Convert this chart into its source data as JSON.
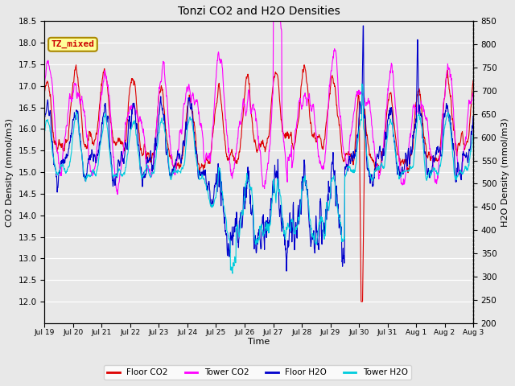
{
  "title": "Tonzi CO2 and H2O Densities",
  "xlabel": "Time",
  "ylabel_left": "CO2 Density (mmol/m3)",
  "ylabel_right": "H2O Density (mmol/m3)",
  "annotation": "TZ_mixed",
  "annotation_color": "#cc0000",
  "annotation_bg": "#ffff99",
  "annotation_border": "#aa8800",
  "ylim_left": [
    11.5,
    18.5
  ],
  "ylim_right": [
    200,
    850
  ],
  "yticks_left": [
    12.0,
    12.5,
    13.0,
    13.5,
    14.0,
    14.5,
    15.0,
    15.5,
    16.0,
    16.5,
    17.0,
    17.5,
    18.0,
    18.5
  ],
  "yticks_right": [
    200,
    250,
    300,
    350,
    400,
    450,
    500,
    550,
    600,
    650,
    700,
    750,
    800,
    850
  ],
  "colors": {
    "floor_co2": "#dd0000",
    "tower_co2": "#ff00ff",
    "floor_h2o": "#0000cc",
    "tower_h2o": "#00ccdd"
  },
  "background_color": "#e8e8e8",
  "grid_color": "#ffffff",
  "fig_bg": "#e8e8e8",
  "legend_labels": [
    "Floor CO2",
    "Tower CO2",
    "Floor H2O",
    "Tower H2O"
  ],
  "x_tick_labels": [
    "Jul 19",
    "Jul 20",
    "Jul 21",
    "Jul 22",
    "Jul 23",
    "Jul 24",
    "Jul 25",
    "Jul 26",
    "Jul 27",
    "Jul 28",
    "Jul 29",
    "Jul 30",
    "Jul 31",
    "Aug 1",
    "Aug 2",
    "Aug 3"
  ],
  "num_points": 1500,
  "line_width": 0.8
}
